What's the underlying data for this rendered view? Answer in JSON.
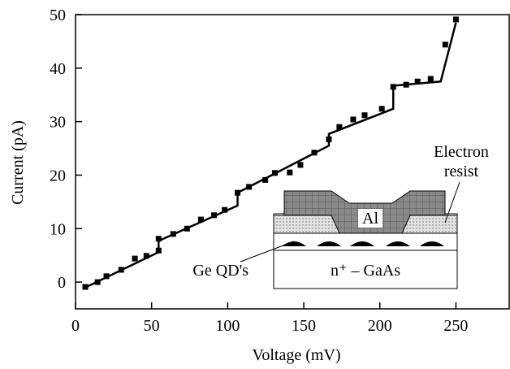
{
  "chart_data": {
    "type": "line",
    "xlabel": "Voltage  (mV)",
    "ylabel": "Current  (pA)",
    "xlim": [
      0,
      285
    ],
    "ylim": [
      -5,
      50
    ],
    "xticks": [
      0,
      50,
      100,
      150,
      200,
      250
    ],
    "yticks": [
      0,
      10,
      20,
      30,
      40,
      50
    ],
    "series": [
      {
        "type": "scatter",
        "color": "#000000",
        "x": [
          6.4,
          14.5,
          20.3,
          30,
          39,
          46.6,
          54.6,
          54.6,
          64.2,
          73.3,
          82.4,
          91,
          98,
          106.5,
          114,
          124.7,
          131,
          140.8,
          147.8,
          156.9,
          166.5,
          173.4,
          182.5,
          190,
          201.3,
          208.8,
          217.3,
          224.8,
          233.4,
          243,
          250
        ],
        "values": [
          -0.9,
          0,
          1.1,
          2.3,
          4.4,
          4.9,
          5.9,
          8.1,
          9.0,
          10.0,
          11.7,
          12.5,
          13.5,
          16.7,
          17.8,
          19.1,
          20.4,
          20.5,
          21.9,
          24.2,
          26.7,
          29.0,
          30.4,
          31.2,
          32.4,
          36.5,
          36.9,
          37.5,
          38.0,
          44.4,
          49.1
        ]
      },
      {
        "type": "line",
        "color": "#000000",
        "x": [
          5,
          54.6,
          54.6,
          106.5,
          106.5,
          166.5,
          166.5,
          208.8,
          208.8,
          240,
          250
        ],
        "values": [
          -1.2,
          5.6,
          7.7,
          14.3,
          16.7,
          25.5,
          27.7,
          32.4,
          36.7,
          37.5,
          48.5
        ]
      }
    ],
    "inset": {
      "metal": "Al",
      "substrate": "n⁺ – GaAs",
      "dots": "Ge QD's",
      "resist": [
        "Electron",
        "resist"
      ]
    }
  }
}
